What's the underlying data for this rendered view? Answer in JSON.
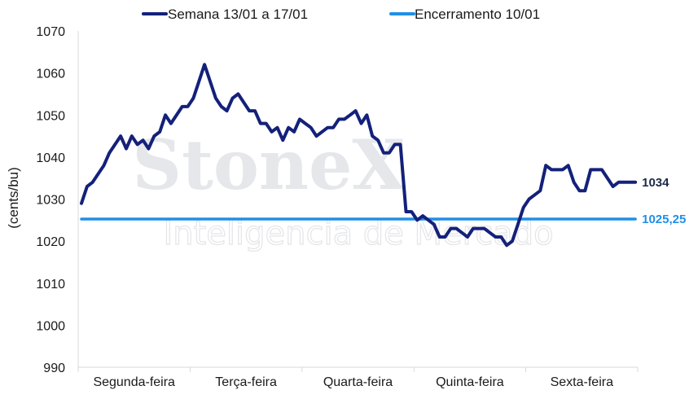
{
  "watermark": {
    "brand": "StoneX",
    "tagline": "Inteligencia de Mercado"
  },
  "chart_data": {
    "type": "line",
    "title": "",
    "xlabel": "",
    "ylabel": "(cents/bu)",
    "ylim": [
      990,
      1070
    ],
    "yticks": [
      990,
      1000,
      1010,
      1020,
      1030,
      1040,
      1050,
      1060,
      1070
    ],
    "categories": [
      "Segunda-feira",
      "Terça-feira",
      "Quarta-feira",
      "Quinta-feira",
      "Sexta-feira"
    ],
    "grid": false,
    "legend_position": "top",
    "series": [
      {
        "name": "Semana 13/01 a 17/01",
        "color": "#14217a",
        "end_label": "1034",
        "end_label_color": "#1b2a4a",
        "x": [
          0.0,
          0.05,
          0.1,
          0.2,
          0.25,
          0.35,
          0.4,
          0.45,
          0.5,
          0.55,
          0.6,
          0.65,
          0.7,
          0.75,
          0.8,
          0.85,
          0.9,
          0.95,
          1.0,
          1.05,
          1.1,
          1.2,
          1.25,
          1.3,
          1.35,
          1.4,
          1.5,
          1.55,
          1.6,
          1.65,
          1.7,
          1.75,
          1.8,
          1.85,
          1.9,
          1.95,
          2.0,
          2.05,
          2.1,
          2.2,
          2.25,
          2.3,
          2.35,
          2.4,
          2.45,
          2.5,
          2.55,
          2.6,
          2.65,
          2.7,
          2.75,
          2.8,
          2.85,
          2.9,
          2.95,
          3.0,
          3.05,
          3.1,
          3.15,
          3.2,
          3.25,
          3.3,
          3.35,
          3.4,
          3.45,
          3.5,
          3.55,
          3.6,
          3.65,
          3.7,
          3.75,
          3.8,
          3.85,
          3.9,
          3.95,
          4.0,
          4.05,
          4.1,
          4.15,
          4.2,
          4.25,
          4.3,
          4.35,
          4.4,
          4.45,
          4.5,
          4.55,
          4.6,
          4.65,
          4.7,
          4.75,
          4.8,
          4.85,
          4.9,
          4.95
        ],
        "values": [
          1029,
          1033,
          1034,
          1038,
          1041,
          1045,
          1042,
          1045,
          1043,
          1044,
          1042,
          1045,
          1046,
          1050,
          1048,
          1050,
          1052,
          1052,
          1054,
          1058,
          1062,
          1054,
          1052,
          1051,
          1054,
          1055,
          1051,
          1051,
          1048,
          1048,
          1046,
          1047,
          1044,
          1047,
          1046,
          1049,
          1048,
          1047,
          1045,
          1047,
          1047,
          1049,
          1049,
          1050,
          1051,
          1048,
          1050,
          1045,
          1044,
          1041,
          1041,
          1043,
          1043,
          1027,
          1027,
          1025,
          1026,
          1025,
          1024,
          1021,
          1021,
          1023,
          1023,
          1022,
          1021,
          1023,
          1023,
          1023,
          1022,
          1021,
          1021,
          1019,
          1020,
          1024,
          1028,
          1030,
          1031,
          1032,
          1038,
          1037,
          1037,
          1037,
          1038,
          1034,
          1032,
          1032,
          1037,
          1037,
          1037,
          1035,
          1033,
          1034,
          1034,
          1034,
          1034
        ]
      },
      {
        "name": "Encerramento 10/01",
        "color": "#1f8fe8",
        "end_label": "1025,25",
        "end_label_color": "#1f8fe8",
        "x": [
          0,
          4.95
        ],
        "values": [
          1025.25,
          1025.25
        ]
      }
    ]
  }
}
